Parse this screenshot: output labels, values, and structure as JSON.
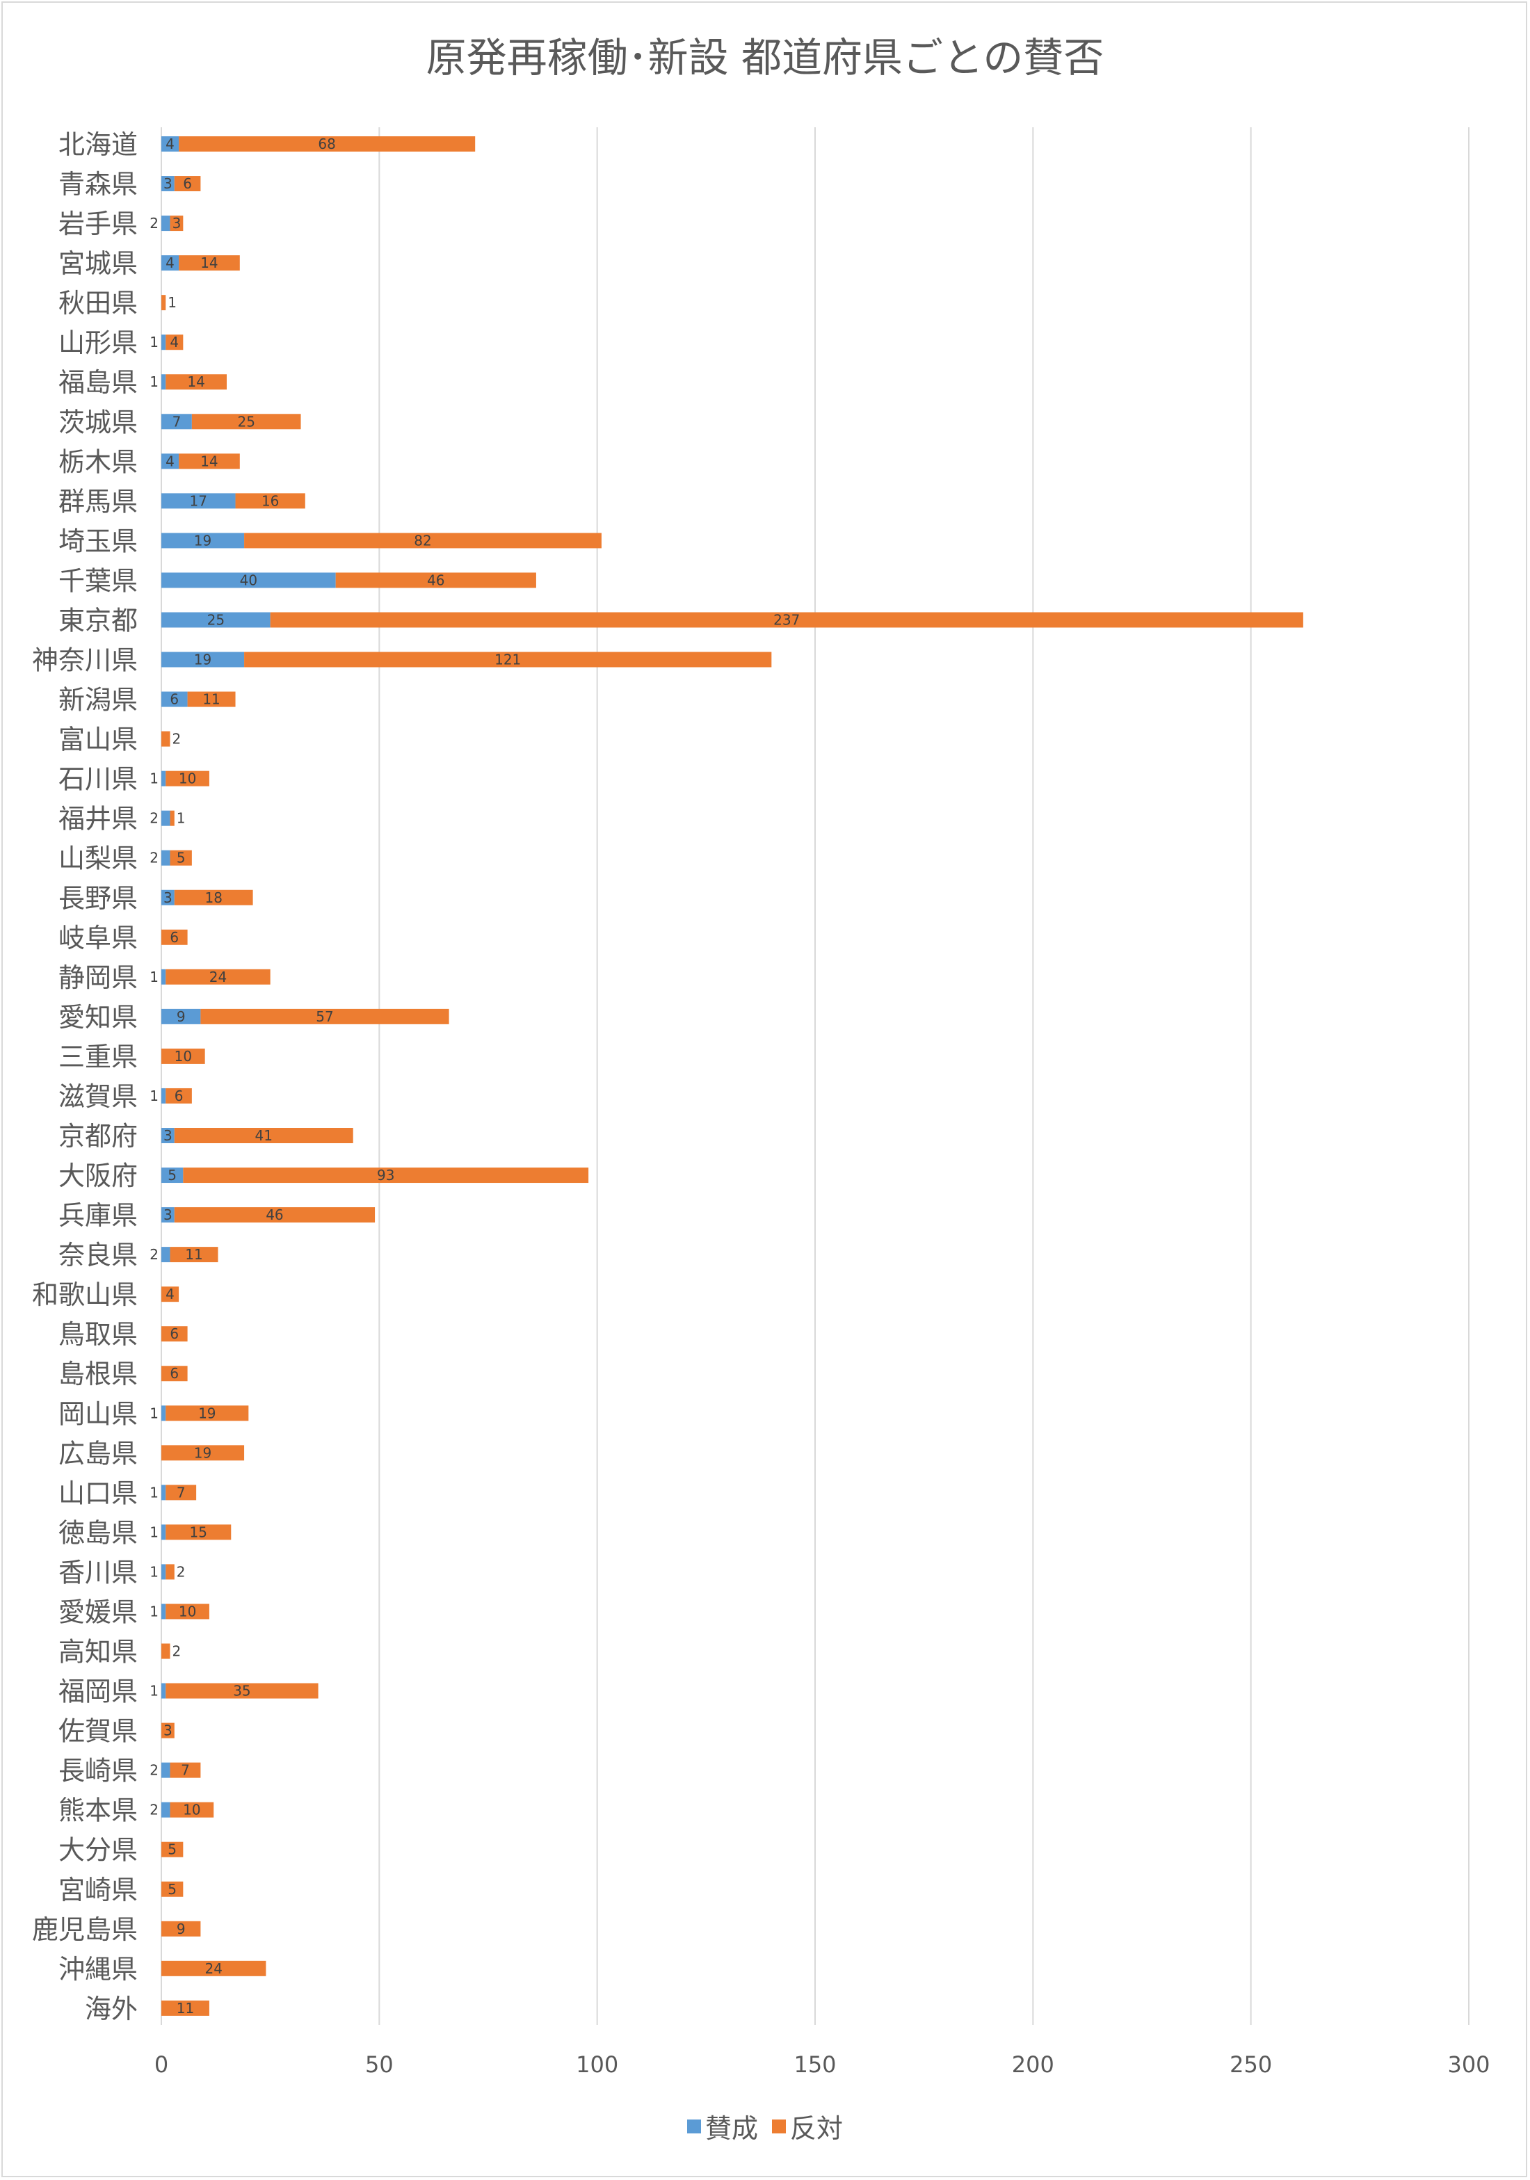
{
  "chart_data": {
    "type": "bar",
    "orientation": "horizontal",
    "stacked": true,
    "title": "原発再稼働･新設 都道府県ごとの賛否",
    "xlim": [
      0,
      300
    ],
    "xticks": [
      0,
      50,
      100,
      150,
      200,
      250,
      300
    ],
    "grid": "vertical",
    "legend_position": "bottom",
    "categories": [
      "北海道",
      "青森県",
      "岩手県",
      "宮城県",
      "秋田県",
      "山形県",
      "福島県",
      "茨城県",
      "栃木県",
      "群馬県",
      "埼玉県",
      "千葉県",
      "東京都",
      "神奈川県",
      "新潟県",
      "富山県",
      "石川県",
      "福井県",
      "山梨県",
      "長野県",
      "岐阜県",
      "静岡県",
      "愛知県",
      "三重県",
      "滋賀県",
      "京都府",
      "大阪府",
      "兵庫県",
      "奈良県",
      "和歌山県",
      "鳥取県",
      "島根県",
      "岡山県",
      "広島県",
      "山口県",
      "徳島県",
      "香川県",
      "愛媛県",
      "高知県",
      "福岡県",
      "佐賀県",
      "長崎県",
      "熊本県",
      "大分県",
      "宮崎県",
      "鹿児島県",
      "沖縄県",
      "海外"
    ],
    "series": [
      {
        "name": "賛成",
        "color": "#5b9bd5",
        "values": [
          4,
          3,
          2,
          4,
          null,
          1,
          1,
          7,
          4,
          17,
          19,
          40,
          25,
          19,
          6,
          null,
          1,
          2,
          2,
          3,
          null,
          1,
          9,
          null,
          1,
          3,
          5,
          3,
          2,
          null,
          null,
          null,
          1,
          null,
          1,
          1,
          1,
          1,
          null,
          1,
          null,
          2,
          2,
          null,
          null,
          null,
          null,
          null
        ]
      },
      {
        "name": "反対",
        "color": "#ed7d31",
        "values": [
          68,
          6,
          3,
          14,
          1,
          4,
          14,
          25,
          14,
          16,
          82,
          46,
          237,
          121,
          11,
          2,
          10,
          1,
          5,
          18,
          6,
          24,
          57,
          10,
          6,
          41,
          93,
          46,
          11,
          4,
          6,
          6,
          19,
          19,
          7,
          15,
          2,
          10,
          2,
          35,
          3,
          7,
          10,
          5,
          5,
          9,
          24,
          11
        ]
      }
    ]
  }
}
